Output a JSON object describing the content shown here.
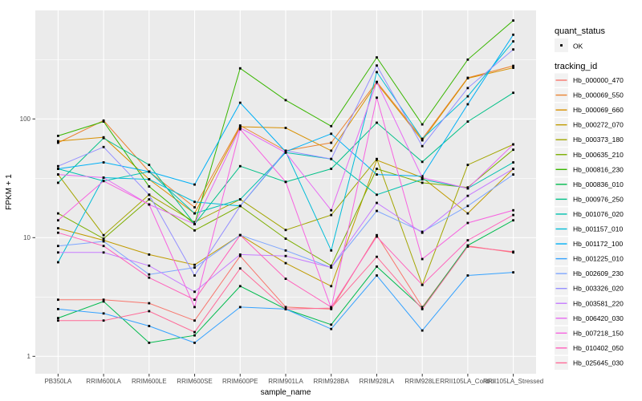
{
  "figure": {
    "background": "#FFFFFF",
    "panel_background": "#EBEBEB",
    "grid_color": "#FFFFFF",
    "axis_text_color": "#4D4D4D",
    "tick_color": "#333333",
    "point_color": "#000000",
    "legend_key_background": "#F2F2F2"
  },
  "axes": {
    "x_title": "sample_name",
    "y_title": "FPKM + 1",
    "y_tick_labels": [
      "1",
      "10",
      "100"
    ]
  },
  "legend": {
    "quant_status_title": "quant_status",
    "quant_status_items": [
      {
        "label": "OK"
      }
    ],
    "tracking_id_title": "tracking_id"
  },
  "chart_data": {
    "type": "line",
    "title": "",
    "xlabel": "sample_name",
    "ylabel": "FPKM + 1",
    "y_scale": "log10",
    "ylim": [
      0.75,
      850
    ],
    "y_ticks": [
      1,
      10,
      100
    ],
    "y_minor_ticks": [
      3.162,
      31.62,
      316.2
    ],
    "grid": true,
    "legend_position": "right",
    "point_shape": "black-square",
    "categories": [
      "PB350LA",
      "RRIM600LA",
      "RRIM600LE",
      "RRIM600SE",
      "RRIM600PE",
      "RRIM901LA",
      "RRIM928BA",
      "RRIM928LA",
      "RRIM928LE",
      "RRII105LA_Control",
      "RRII105LA_Stressed"
    ],
    "series": [
      {
        "name": "Hb_000000_470",
        "color": "#F8766D",
        "values": [
          3.0,
          3.0,
          2.8,
          2.0,
          7.0,
          2.6,
          2.5,
          10.5,
          2.6,
          8.5,
          7.5
        ]
      },
      {
        "name": "Hb_000069_550",
        "color": "#EA8331",
        "values": [
          63,
          97,
          36,
          18,
          88,
          54,
          63,
          205,
          68,
          222,
          280
        ]
      },
      {
        "name": "Hb_000069_660",
        "color": "#D89000",
        "values": [
          65,
          70,
          31,
          16,
          86,
          84,
          54,
          200,
          66,
          220,
          270
        ]
      },
      {
        "name": "Hb_000272_070",
        "color": "#C09B00",
        "values": [
          12,
          9.5,
          7.2,
          5.9,
          10.5,
          6.1,
          3.9,
          45,
          32,
          16,
          38
        ]
      },
      {
        "name": "Hb_000373_180",
        "color": "#A3A500",
        "values": [
          34,
          10.5,
          23,
          13.5,
          21,
          11.6,
          15.5,
          46,
          4.0,
          41,
          61
        ]
      },
      {
        "name": "Hb_000635_210",
        "color": "#7CAE00",
        "values": [
          16,
          9.8,
          21,
          11.5,
          18.5,
          9.8,
          5.8,
          38,
          29,
          26.5,
          55
        ]
      },
      {
        "name": "Hb_000816_230",
        "color": "#39B600",
        "values": [
          72,
          95,
          27,
          13,
          267,
          144,
          87,
          330,
          90,
          316,
          675
        ]
      },
      {
        "name": "Hb_000836_010",
        "color": "#00BB4E",
        "values": [
          2.1,
          2.9,
          1.3,
          1.5,
          3.9,
          2.5,
          1.85,
          5.7,
          2.55,
          8.6,
          14
        ]
      },
      {
        "name": "Hb_000976_250",
        "color": "#00C087",
        "values": [
          29,
          69,
          41,
          13,
          40,
          29.5,
          38,
          93,
          43.5,
          95,
          166
        ]
      },
      {
        "name": "Hb_001076_020",
        "color": "#00C0AF",
        "values": [
          38,
          30,
          36,
          16,
          21,
          52,
          46,
          23,
          31,
          26,
          43
        ]
      },
      {
        "name": "Hb_001157_010",
        "color": "#00BCD8",
        "values": [
          6.2,
          32,
          31,
          20,
          18.5,
          53,
          7.8,
          248,
          68,
          155,
          450
        ]
      },
      {
        "name": "Hb_001172_100",
        "color": "#00B0F6",
        "values": [
          38,
          43,
          36,
          28,
          137,
          53,
          75,
          34,
          33,
          133,
          512
        ]
      },
      {
        "name": "Hb_001225_010",
        "color": "#35A2FF",
        "values": [
          2.5,
          2.3,
          1.8,
          1.3,
          2.6,
          2.5,
          1.7,
          4.8,
          1.65,
          4.8,
          5.1
        ]
      },
      {
        "name": "Hb_002609_230",
        "color": "#7EA6FF",
        "values": [
          8.5,
          9.3,
          4.9,
          5.6,
          10.5,
          7.8,
          5.6,
          16.8,
          11.2,
          18.5,
          34
        ]
      },
      {
        "name": "Hb_003326_020",
        "color": "#9590FF",
        "values": [
          40,
          58,
          23,
          4.8,
          18.5,
          54,
          46,
          282,
          59,
          182,
          385
        ]
      },
      {
        "name": "Hb_003581_220",
        "color": "#C77CFF",
        "values": [
          7.5,
          7.5,
          5.8,
          3.5,
          7.2,
          7.0,
          5.6,
          19.6,
          11,
          22.5,
          38
        ]
      },
      {
        "name": "Hb_006420_030",
        "color": "#E76BF3",
        "values": [
          34,
          32,
          19,
          13,
          84,
          52,
          17,
          205,
          32,
          26,
          61
        ]
      },
      {
        "name": "Hb_007218_150",
        "color": "#F763E0",
        "values": [
          14,
          30,
          19,
          2.6,
          82,
          29.5,
          2.55,
          151,
          6.6,
          13.3,
          17
        ]
      },
      {
        "name": "Hb_010402_050",
        "color": "#FF62BC",
        "values": [
          11,
          8.5,
          4.6,
          3.0,
          10.5,
          4.5,
          2.6,
          10.2,
          4.0,
          9.5,
          15.5
        ]
      },
      {
        "name": "Hb_025645_030",
        "color": "#FF6A98",
        "values": [
          2.0,
          2.0,
          2.4,
          1.6,
          5.5,
          2.5,
          2.55,
          6.9,
          2.5,
          8.4,
          7.6
        ]
      }
    ]
  }
}
